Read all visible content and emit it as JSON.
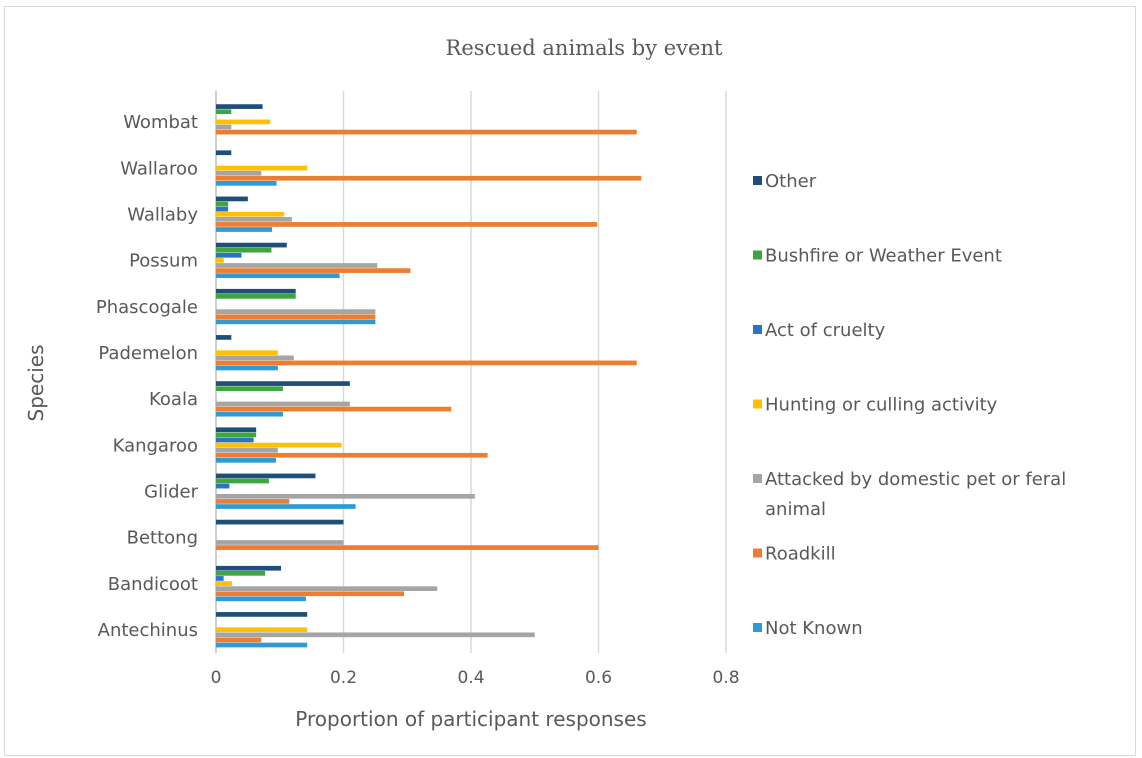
{
  "chart_data": {
    "type": "bar",
    "orientation": "horizontal",
    "title": "Rescued animals by event",
    "xlabel": "Proportion of participant responses",
    "ylabel": "Species",
    "xlim": [
      0,
      0.8
    ],
    "xticks": [
      "0",
      "0.2",
      "0.4",
      "0.6",
      "0.8"
    ],
    "grid": true,
    "legend_position": "right",
    "categories": [
      "Antechinus",
      "Bandicoot",
      "Bettong",
      "Glider",
      "Kangaroo",
      "Koala",
      "Pademelon",
      "Phascogale",
      "Possum",
      "Wallaby",
      "Wallaroo",
      "Wombat"
    ],
    "series": [
      {
        "name": "Other",
        "color": "#1f4e79",
        "values": [
          0.143,
          0.102,
          0.2,
          0.156,
          0.063,
          0.21,
          0.024,
          0.125,
          0.111,
          0.05,
          0.024,
          0.073
        ]
      },
      {
        "name": "Bushfire or Weather Event",
        "color": "#3fa53f",
        "values": [
          0,
          0.077,
          0,
          0.083,
          0.063,
          0.105,
          0,
          0.125,
          0.087,
          0.019,
          0,
          0.024
        ]
      },
      {
        "name": "Act of cruelty",
        "color": "#2a74c6",
        "values": [
          0,
          0.012,
          0,
          0.021,
          0.059,
          0,
          0,
          0,
          0.04,
          0.019,
          0,
          0
        ]
      },
      {
        "name": "Hunting or culling activity",
        "color": "#ffc000",
        "values": [
          0.143,
          0.025,
          0,
          0,
          0.197,
          0,
          0.097,
          0,
          0.012,
          0.107,
          0.143,
          0.085
        ]
      },
      {
        "name": "Attacked by domestic pet or feral animal",
        "color": "#a5a5a5",
        "values": [
          0.5,
          0.347,
          0.2,
          0.406,
          0.097,
          0.21,
          0.122,
          0.25,
          0.253,
          0.119,
          0.071,
          0.024
        ]
      },
      {
        "name": "Roadkill",
        "color": "#ed7d31",
        "values": [
          0.071,
          0.295,
          0.6,
          0.115,
          0.426,
          0.369,
          0.66,
          0.25,
          0.305,
          0.598,
          0.667,
          0.66
        ]
      },
      {
        "name": "Not Known",
        "color": "#2e9bd6",
        "values": [
          0.143,
          0.141,
          0,
          0.219,
          0.094,
          0.105,
          0.097,
          0.25,
          0.194,
          0.088,
          0.095,
          0
        ]
      }
    ]
  }
}
